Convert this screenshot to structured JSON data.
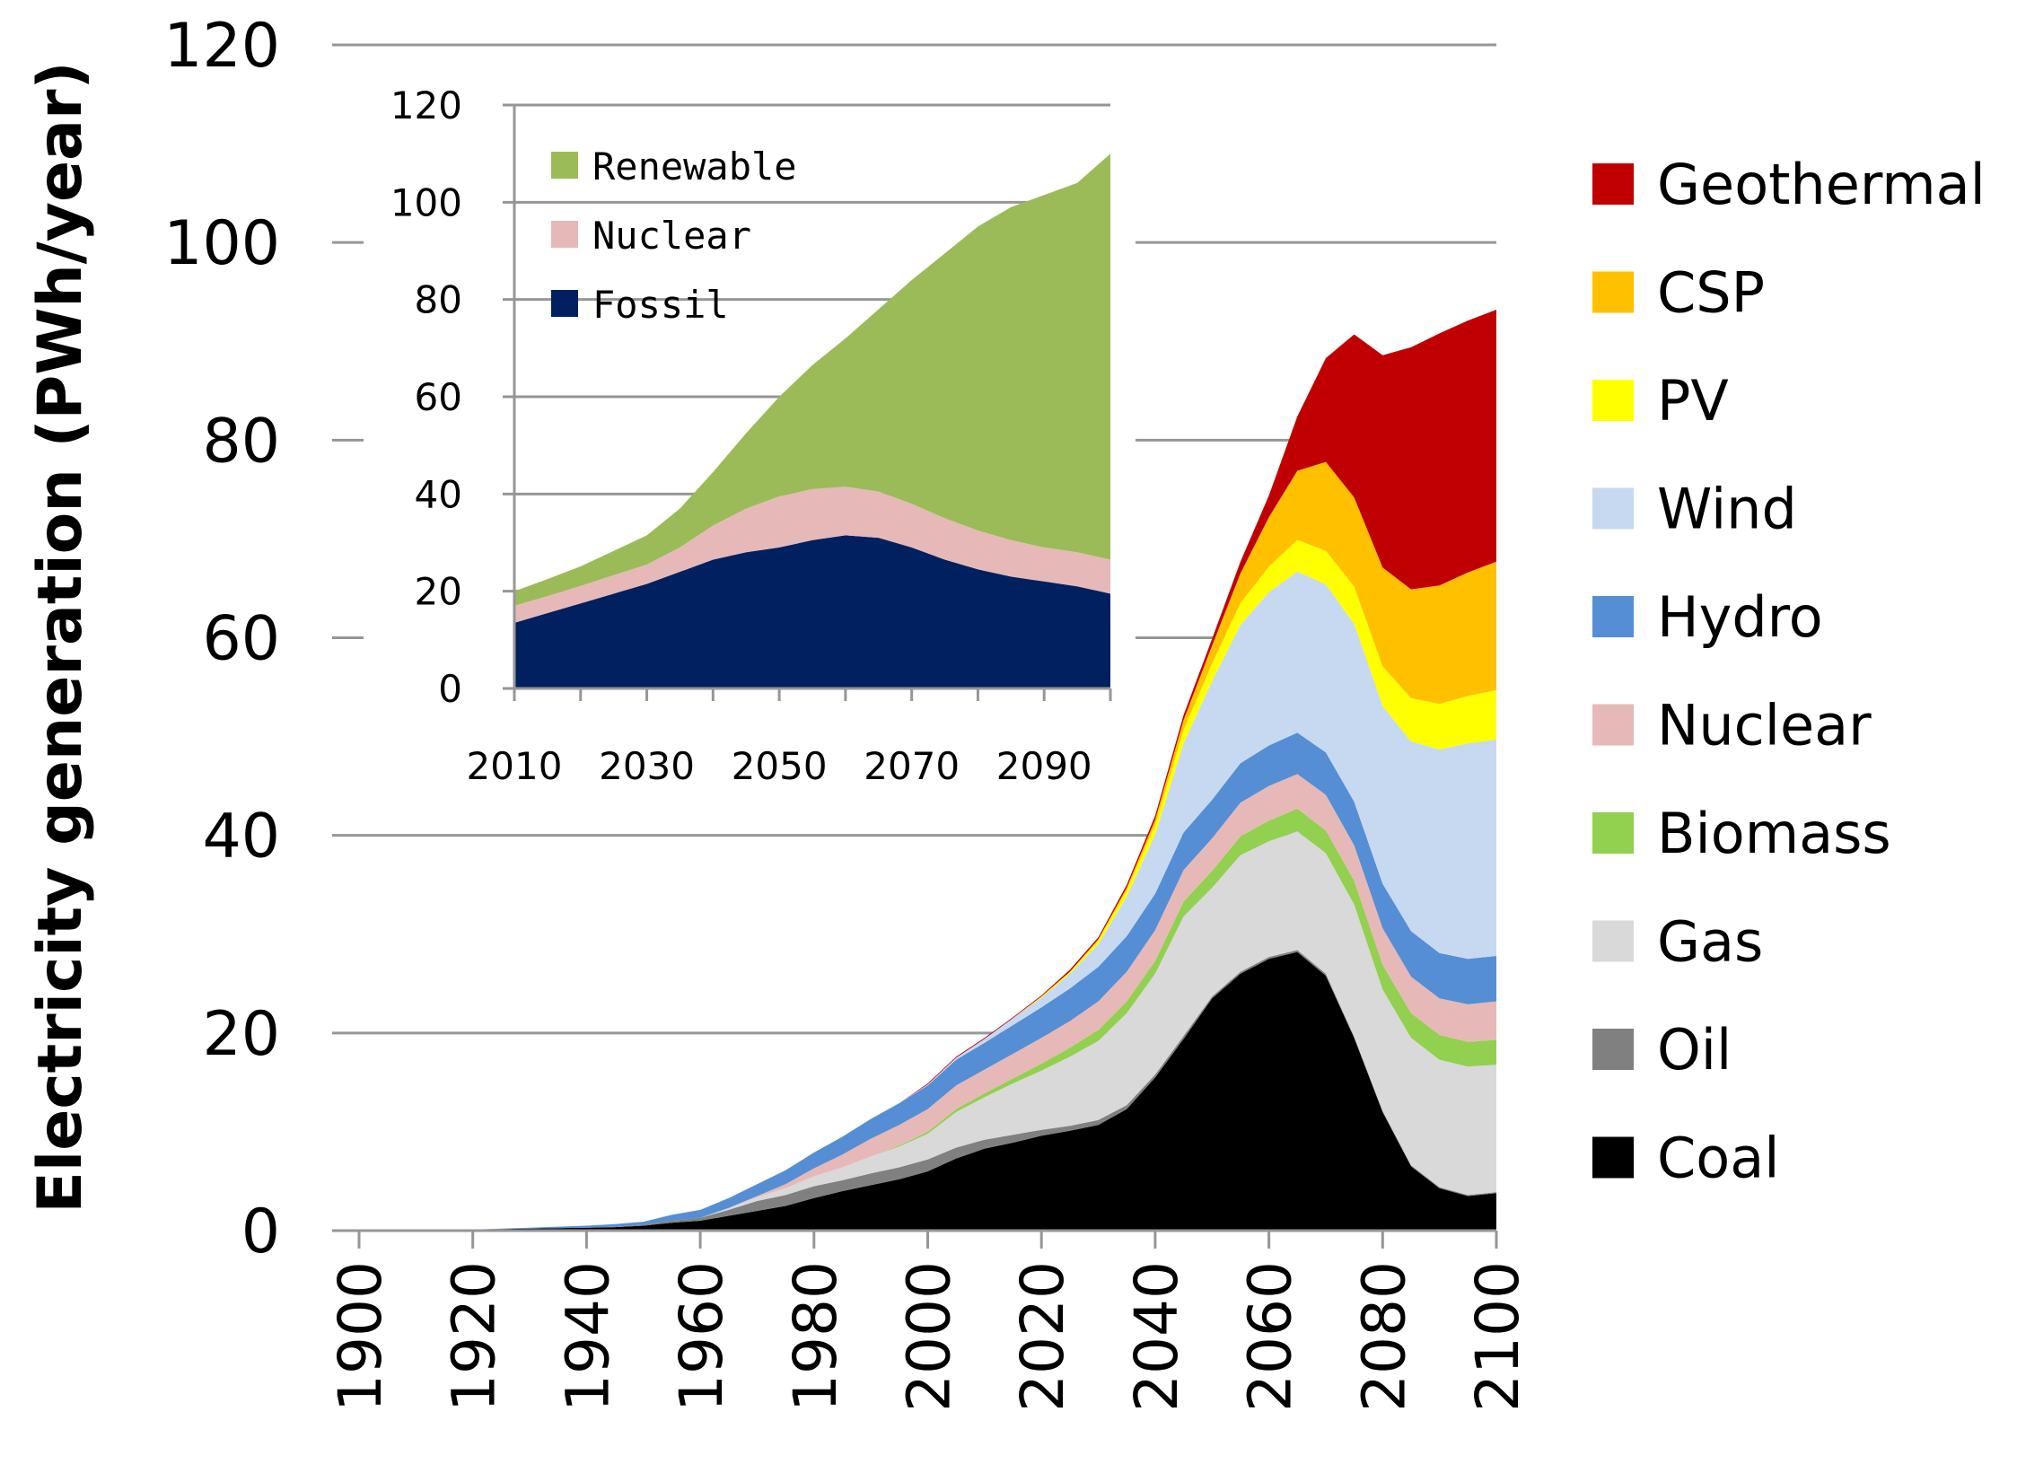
{
  "chart_data": [
    {
      "type": "area",
      "stacked": true,
      "title": "",
      "xlabel": "",
      "ylabel": "Electricity generation (PWh/year)",
      "xlim": [
        1900,
        2100
      ],
      "ylim": [
        0,
        120
      ],
      "x_ticks": [
        "1900",
        "1920",
        "1940",
        "1960",
        "1980",
        "2000",
        "2020",
        "2040",
        "2060",
        "2080",
        "2100"
      ],
      "y_ticks": [
        "0",
        "20",
        "40",
        "60",
        "80",
        "100",
        "120"
      ],
      "grid": "horizontal",
      "legend_position": "right",
      "x": [
        1900,
        1905,
        1910,
        1915,
        1920,
        1925,
        1930,
        1935,
        1940,
        1945,
        1950,
        1955,
        1960,
        1965,
        1970,
        1975,
        1980,
        1985,
        1990,
        1995,
        2000,
        2005,
        2010,
        2015,
        2020,
        2025,
        2030,
        2035,
        2040,
        2045,
        2050,
        2055,
        2060,
        2065,
        2070,
        2075,
        2080,
        2085,
        2090,
        2095,
        2100
      ],
      "series": [
        {
          "name": "Coal",
          "color": "#000000",
          "values": [
            0,
            0,
            0,
            0.05,
            0.1,
            0.15,
            0.2,
            0.25,
            0.3,
            0.35,
            0.5,
            0.8,
            1.0,
            1.5,
            2.0,
            2.5,
            3.3,
            4.0,
            4.6,
            5.2,
            6.0,
            7.3,
            8.3,
            8.9,
            9.6,
            10.1,
            10.7,
            12.3,
            15.5,
            19.4,
            23.5,
            26.0,
            27.5,
            28.2,
            25.8,
            19.5,
            12.0,
            6.5,
            4.3,
            3.5,
            3.8
          ]
        },
        {
          "name": "Oil",
          "color": "#808080",
          "values": [
            0,
            0,
            0,
            0,
            0,
            0,
            0,
            0,
            0,
            0.05,
            0.1,
            0.2,
            0.3,
            0.6,
            1.0,
            1.1,
            1.2,
            1.1,
            1.2,
            1.2,
            1.2,
            1.1,
            0.9,
            0.8,
            0.6,
            0.5,
            0.5,
            0.4,
            0.3,
            0.3,
            0.2,
            0.2,
            0.2,
            0.2,
            0.2,
            0.1,
            0.1,
            0.1,
            0.1,
            0.1,
            0.1
          ]
        },
        {
          "name": "Gas",
          "color": "#d9d9d9",
          "values": [
            0,
            0,
            0,
            0,
            0,
            0,
            0,
            0,
            0,
            0,
            0,
            0,
            0,
            0.2,
            0.4,
            0.7,
            1.0,
            1.3,
            1.7,
            2.1,
            2.6,
            3.6,
            4.3,
            5.2,
            6.0,
            7.0,
            8.0,
            9.3,
            10.2,
            12.1,
            11.0,
            11.8,
            11.7,
            12.0,
            12.2,
            13.4,
            12.3,
            12.9,
            12.9,
            13.0,
            12.9
          ]
        },
        {
          "name": "Biomass",
          "color": "#92d050",
          "values": [
            0,
            0,
            0,
            0,
            0,
            0,
            0,
            0,
            0,
            0,
            0,
            0,
            0,
            0,
            0,
            0,
            0,
            0,
            0,
            0.1,
            0.2,
            0.3,
            0.4,
            0.5,
            0.7,
            0.9,
            1.1,
            1.2,
            1.3,
            1.5,
            1.7,
            1.9,
            2.1,
            2.3,
            2.3,
            2.4,
            2.5,
            2.5,
            2.5,
            2.5,
            2.5
          ]
        },
        {
          "name": "Nuclear",
          "color": "#e6b9b8",
          "values": [
            0,
            0,
            0,
            0,
            0,
            0,
            0,
            0,
            0,
            0,
            0,
            0,
            0,
            0,
            0.1,
            0.4,
            0.8,
            1.3,
            1.8,
            2.1,
            2.3,
            2.4,
            2.4,
            2.5,
            2.6,
            2.7,
            2.9,
            3.0,
            3.1,
            3.2,
            3.3,
            3.4,
            3.5,
            3.5,
            3.6,
            3.6,
            3.7,
            3.7,
            3.7,
            3.8,
            3.9
          ]
        },
        {
          "name": "Hydro",
          "color": "#558ed5",
          "values": [
            0,
            0,
            0,
            0,
            0,
            0.05,
            0.1,
            0.15,
            0.2,
            0.25,
            0.3,
            0.6,
            0.8,
            1.0,
            1.2,
            1.4,
            1.6,
            1.8,
            2.0,
            2.2,
            2.4,
            2.6,
            2.7,
            2.9,
            3.1,
            3.3,
            3.5,
            3.6,
            3.7,
            3.8,
            3.9,
            4.0,
            4.1,
            4.2,
            4.3,
            4.4,
            4.5,
            4.6,
            4.6,
            4.6,
            4.6
          ]
        },
        {
          "name": "Wind",
          "color": "#c6d9f1",
          "values": [
            0,
            0,
            0,
            0,
            0,
            0,
            0,
            0,
            0,
            0,
            0,
            0,
            0,
            0,
            0,
            0,
            0,
            0,
            0,
            0,
            0.1,
            0.2,
            0.4,
            0.7,
            1.0,
            1.5,
            2.3,
            4.0,
            6.0,
            9.0,
            12.0,
            14.0,
            15.5,
            16.3,
            17.0,
            18.0,
            18.0,
            19.2,
            20.6,
            21.8,
            21.9
          ]
        },
        {
          "name": "PV",
          "color": "#ffff00",
          "values": [
            0,
            0,
            0,
            0,
            0,
            0,
            0,
            0,
            0,
            0,
            0,
            0,
            0,
            0,
            0,
            0,
            0,
            0,
            0,
            0,
            0,
            0,
            0,
            0,
            0.1,
            0.2,
            0.4,
            0.7,
            1.0,
            1.4,
            1.8,
            2.2,
            2.6,
            3.2,
            3.4,
            3.8,
            4.0,
            4.4,
            4.6,
            4.8,
            5.0
          ]
        },
        {
          "name": "CSP",
          "color": "#ffc000",
          "values": [
            0,
            0,
            0,
            0,
            0,
            0,
            0,
            0,
            0,
            0,
            0,
            0,
            0,
            0,
            0,
            0,
            0,
            0,
            0,
            0,
            0,
            0,
            0,
            0,
            0,
            0,
            0.1,
            0.2,
            0.5,
            1.0,
            1.8,
            3.0,
            5.0,
            7.0,
            9.0,
            9.0,
            10.0,
            11.0,
            12.0,
            12.5,
            13.0
          ]
        },
        {
          "name": "Geothermal",
          "color": "#c00000",
          "values": [
            0,
            0,
            0,
            0,
            0,
            0,
            0,
            0,
            0,
            0,
            0,
            0,
            0,
            0,
            0,
            0,
            0,
            0,
            0,
            0,
            0.1,
            0.1,
            0.1,
            0.1,
            0.1,
            0.2,
            0.2,
            0.3,
            0.4,
            0.5,
            0.7,
            1.2,
            2.2,
            5.5,
            10.5,
            16.5,
            21.5,
            24.5,
            25.5,
            25.5,
            25.5
          ]
        }
      ],
      "legend": [
        "Geothermal",
        "CSP",
        "PV",
        "Wind",
        "Hydro",
        "Nuclear",
        "Biomass",
        "Gas",
        "Oil",
        "Coal"
      ]
    },
    {
      "type": "area",
      "stacked": true,
      "title": "",
      "xlabel": "",
      "ylabel": "",
      "xlim": [
        2010,
        2100
      ],
      "ylim": [
        0,
        120
      ],
      "x_ticks": [
        "2010",
        "2030",
        "2050",
        "2070",
        "2090"
      ],
      "y_ticks": [
        "0",
        "20",
        "40",
        "60",
        "80",
        "100",
        "120"
      ],
      "grid": "horizontal",
      "legend_position": "top-left",
      "x": [
        2010,
        2015,
        2020,
        2025,
        2030,
        2035,
        2040,
        2045,
        2050,
        2055,
        2060,
        2065,
        2070,
        2075,
        2080,
        2085,
        2090,
        2095,
        2100
      ],
      "series": [
        {
          "name": "Fossil",
          "color": "#002060",
          "values": [
            13.5,
            15.5,
            17.5,
            19.5,
            21.5,
            24.0,
            26.5,
            28.0,
            29.0,
            30.5,
            31.5,
            31.0,
            29.0,
            26.5,
            24.5,
            23.0,
            22.0,
            21.0,
            19.5
          ]
        },
        {
          "name": "Nuclear",
          "color": "#e6b9b8",
          "values": [
            3.5,
            3.5,
            3.6,
            3.8,
            4.0,
            5.0,
            7.0,
            9.0,
            10.5,
            10.5,
            10.0,
            9.5,
            9.0,
            8.5,
            8.0,
            7.5,
            7.0,
            7.0,
            7.0
          ]
        },
        {
          "name": "Renewable",
          "color": "#9bbb59",
          "values": [
            3.0,
            3.5,
            4.0,
            5.0,
            6.0,
            8.0,
            11.0,
            15.5,
            20.5,
            25.5,
            30.5,
            37.5,
            46.0,
            54.5,
            62.5,
            68.5,
            72.5,
            76.0,
            83.5
          ]
        }
      ],
      "legend": [
        "Renewable",
        "Nuclear",
        "Fossil"
      ]
    }
  ]
}
